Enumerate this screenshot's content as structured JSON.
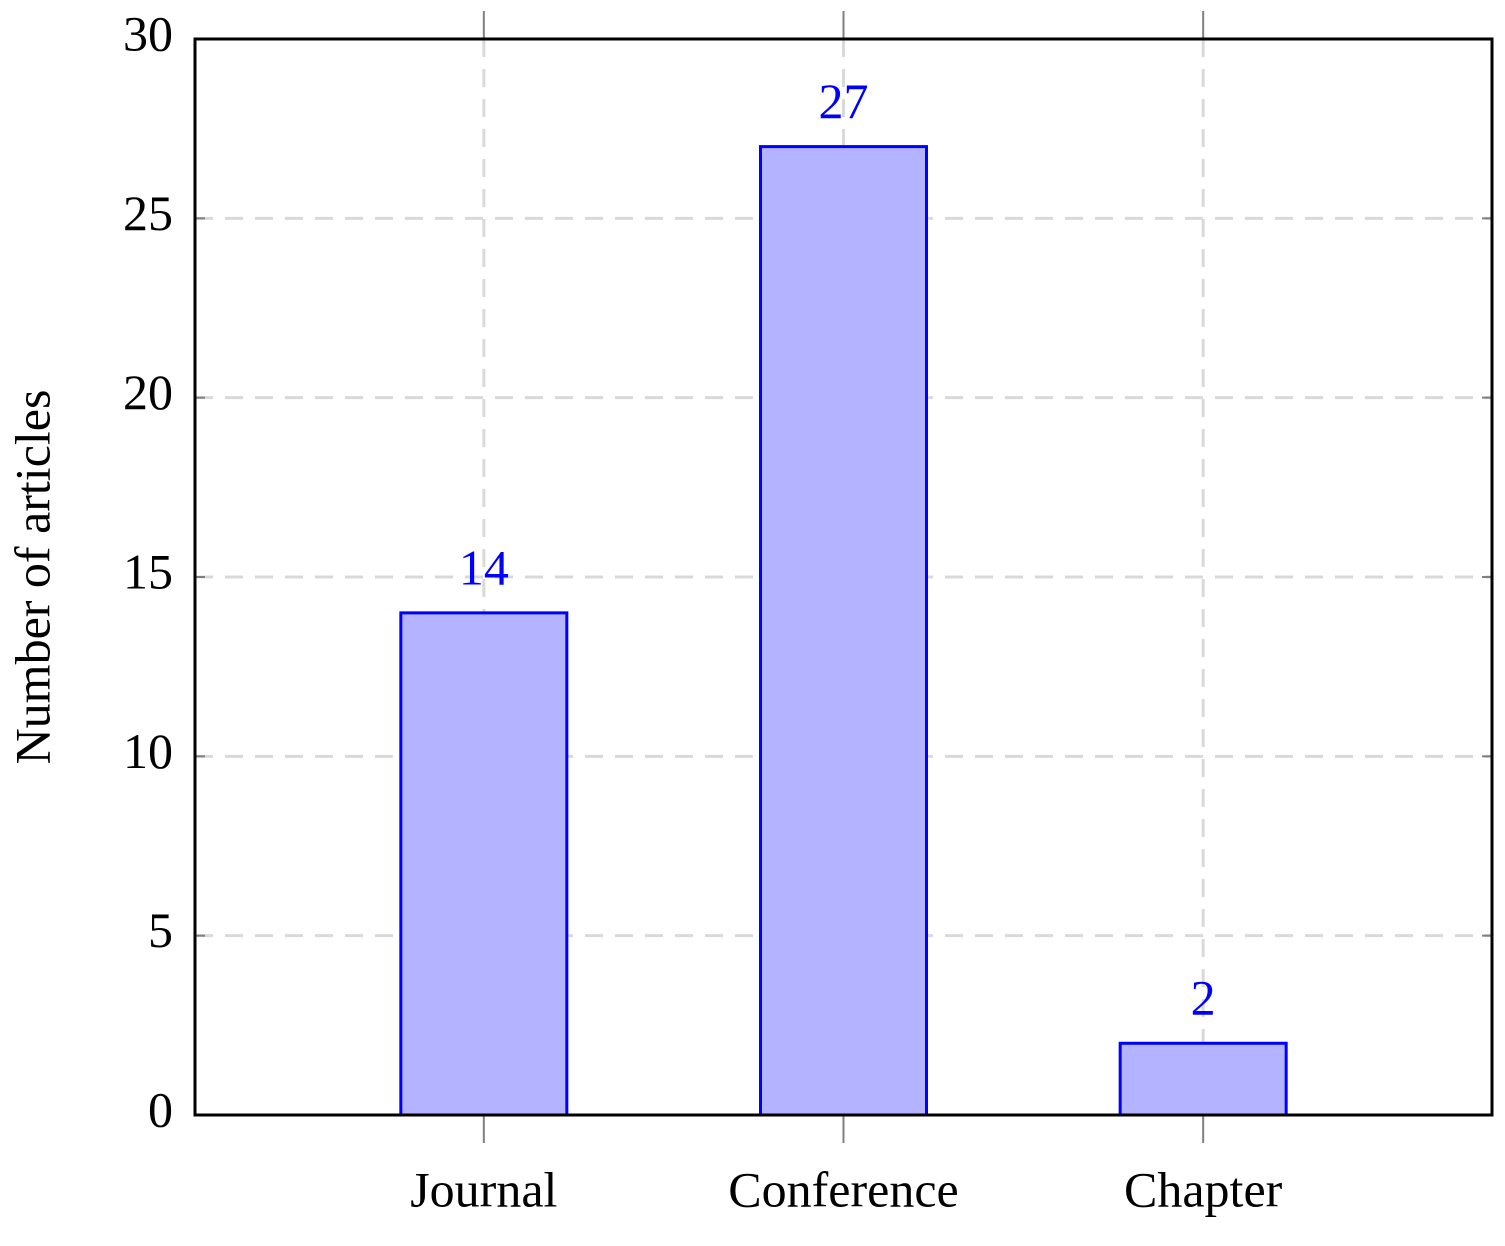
{
  "chart_data": {
    "type": "bar",
    "ylabel": "Number of articles",
    "categories": [
      "Journal",
      "Conference",
      "Chapter"
    ],
    "values": [
      14,
      27,
      2
    ],
    "color": "#b3b3ff",
    "edge_color": "#0000ff",
    "label_color": "#0000ff",
    "ylim": [
      0,
      30
    ],
    "yticks": [
      0,
      5,
      10,
      15,
      20,
      25,
      30
    ],
    "grid": true
  }
}
